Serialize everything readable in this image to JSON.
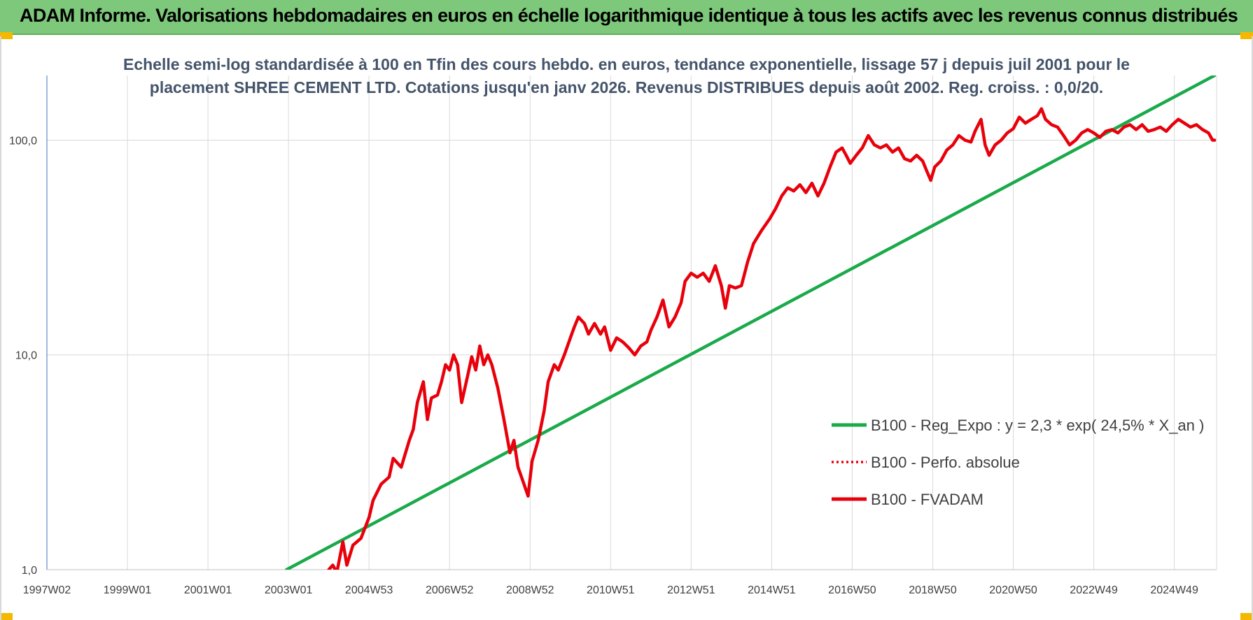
{
  "header": {
    "title": "ADAM Informe. Valorisations hebdomadaires en euros en échelle logarithmique identique à tous les actifs avec les revenus connus distribués"
  },
  "colors": {
    "banner": "#7dc87a",
    "regression": "#1aaa4a",
    "fvadam": "#e8000b",
    "perfo": "#e8000b",
    "title_text": "#44546a"
  },
  "chart_data": {
    "type": "line",
    "title_lines": [
      "Echelle semi-log standardisée à 100 en Tfin des cours hebdo. en euros, tendance exponentielle, lissage 57 j depuis juil 2001 pour le",
      "placement SHREE CEMENT LTD. Cotations jusqu'en janv 2026. Revenus DISTRIBUES depuis août 2002. Reg. croiss. : 0,0/20."
    ],
    "y_scale": "log",
    "ylim": [
      1,
      200
    ],
    "y_ticks": [
      {
        "value": 1,
        "label": "1,0"
      },
      {
        "value": 10,
        "label": "10,0"
      },
      {
        "value": 100,
        "label": "100,0"
      }
    ],
    "x_range": [
      "1997-01",
      "2026-02"
    ],
    "x_ticks": [
      {
        "date": 1997.0,
        "label": "1997W02"
      },
      {
        "date": 1999.0,
        "label": "1999W01"
      },
      {
        "date": 2001.0,
        "label": "2001W01"
      },
      {
        "date": 2003.0,
        "label": "2003W01"
      },
      {
        "date": 2005.0,
        "label": "2004W53"
      },
      {
        "date": 2007.0,
        "label": "2006W52"
      },
      {
        "date": 2009.0,
        "label": "2008W52"
      },
      {
        "date": 2011.0,
        "label": "2010W51"
      },
      {
        "date": 2013.0,
        "label": "2012W51"
      },
      {
        "date": 2015.0,
        "label": "2014W51"
      },
      {
        "date": 2017.0,
        "label": "2016W50"
      },
      {
        "date": 2019.0,
        "label": "2018W50"
      },
      {
        "date": 2021.0,
        "label": "2020W50"
      },
      {
        "date": 2023.0,
        "label": "2022W49"
      },
      {
        "date": 2025.0,
        "label": "2024W49"
      }
    ],
    "grid": "vertical and horizontal",
    "legend_position": "bottom-right",
    "series": [
      {
        "name": "B100 - Reg_Expo : y = 2,3 * exp( 24,5% *  X_an )",
        "style": "solid",
        "color": "#1aaa4a",
        "points": [
          [
            2002.95,
            1.0
          ],
          [
            2026.0,
            200.0
          ]
        ]
      },
      {
        "name": "B100 - Perfo. absolue",
        "style": "dotted",
        "color": "#e8000b",
        "points": []
      },
      {
        "name": "B100 - FVADAM",
        "style": "solid",
        "color": "#e8000b",
        "points": [
          [
            2004.0,
            1.0
          ],
          [
            2004.1,
            1.05
          ],
          [
            2004.2,
            0.97
          ],
          [
            2004.35,
            1.35
          ],
          [
            2004.45,
            1.05
          ],
          [
            2004.6,
            1.3
          ],
          [
            2004.8,
            1.4
          ],
          [
            2005.0,
            1.75
          ],
          [
            2005.1,
            2.1
          ],
          [
            2005.3,
            2.5
          ],
          [
            2005.5,
            2.7
          ],
          [
            2005.6,
            3.3
          ],
          [
            2005.8,
            3.0
          ],
          [
            2006.0,
            4.0
          ],
          [
            2006.1,
            4.5
          ],
          [
            2006.2,
            6.0
          ],
          [
            2006.35,
            7.5
          ],
          [
            2006.45,
            5.0
          ],
          [
            2006.55,
            6.3
          ],
          [
            2006.7,
            6.5
          ],
          [
            2006.8,
            7.5
          ],
          [
            2006.9,
            9.0
          ],
          [
            2007.0,
            8.5
          ],
          [
            2007.1,
            10.0
          ],
          [
            2007.2,
            9.0
          ],
          [
            2007.3,
            6.0
          ],
          [
            2007.45,
            8.0
          ],
          [
            2007.55,
            9.8
          ],
          [
            2007.65,
            8.5
          ],
          [
            2007.75,
            11.0
          ],
          [
            2007.85,
            9.0
          ],
          [
            2007.95,
            10.0
          ],
          [
            2008.05,
            9.0
          ],
          [
            2008.2,
            7.0
          ],
          [
            2008.35,
            5.0
          ],
          [
            2008.5,
            3.5
          ],
          [
            2008.6,
            4.0
          ],
          [
            2008.7,
            3.0
          ],
          [
            2008.85,
            2.5
          ],
          [
            2008.95,
            2.2
          ],
          [
            2009.05,
            3.2
          ],
          [
            2009.2,
            4.0
          ],
          [
            2009.35,
            5.5
          ],
          [
            2009.45,
            7.5
          ],
          [
            2009.6,
            9.0
          ],
          [
            2009.7,
            8.5
          ],
          [
            2009.85,
            10.0
          ],
          [
            2010.0,
            12.0
          ],
          [
            2010.1,
            13.5
          ],
          [
            2010.2,
            15.0
          ],
          [
            2010.35,
            14.0
          ],
          [
            2010.45,
            12.5
          ],
          [
            2010.6,
            14.0
          ],
          [
            2010.75,
            12.5
          ],
          [
            2010.85,
            13.5
          ],
          [
            2011.0,
            10.5
          ],
          [
            2011.15,
            12.0
          ],
          [
            2011.3,
            11.5
          ],
          [
            2011.45,
            10.8
          ],
          [
            2011.6,
            10.0
          ],
          [
            2011.75,
            11.0
          ],
          [
            2011.9,
            11.5
          ],
          [
            2012.0,
            13.0
          ],
          [
            2012.15,
            15.0
          ],
          [
            2012.3,
            18.0
          ],
          [
            2012.45,
            13.5
          ],
          [
            2012.6,
            15.0
          ],
          [
            2012.75,
            17.5
          ],
          [
            2012.85,
            22.0
          ],
          [
            2013.0,
            24.0
          ],
          [
            2013.15,
            23.0
          ],
          [
            2013.3,
            24.0
          ],
          [
            2013.45,
            22.0
          ],
          [
            2013.6,
            26.0
          ],
          [
            2013.75,
            21.0
          ],
          [
            2013.85,
            16.5
          ],
          [
            2013.95,
            21.0
          ],
          [
            2014.1,
            20.5
          ],
          [
            2014.25,
            21.0
          ],
          [
            2014.4,
            27.0
          ],
          [
            2014.55,
            33.0
          ],
          [
            2014.75,
            38.0
          ],
          [
            2014.95,
            43.0
          ],
          [
            2015.1,
            48.0
          ],
          [
            2015.25,
            55.0
          ],
          [
            2015.4,
            60.0
          ],
          [
            2015.55,
            58.0
          ],
          [
            2015.7,
            62.0
          ],
          [
            2015.85,
            57.0
          ],
          [
            2016.0,
            63.0
          ],
          [
            2016.15,
            55.0
          ],
          [
            2016.3,
            63.0
          ],
          [
            2016.45,
            75.0
          ],
          [
            2016.6,
            88.0
          ],
          [
            2016.75,
            92.0
          ],
          [
            2016.85,
            85.0
          ],
          [
            2016.95,
            78.0
          ],
          [
            2017.1,
            85.0
          ],
          [
            2017.25,
            92.0
          ],
          [
            2017.4,
            105.0
          ],
          [
            2017.55,
            95.0
          ],
          [
            2017.7,
            92.0
          ],
          [
            2017.85,
            95.0
          ],
          [
            2018.0,
            88.0
          ],
          [
            2018.15,
            92.0
          ],
          [
            2018.3,
            82.0
          ],
          [
            2018.45,
            80.0
          ],
          [
            2018.6,
            85.0
          ],
          [
            2018.75,
            80.0
          ],
          [
            2018.85,
            72.0
          ],
          [
            2018.95,
            65.0
          ],
          [
            2019.05,
            75.0
          ],
          [
            2019.2,
            80.0
          ],
          [
            2019.35,
            90.0
          ],
          [
            2019.5,
            95.0
          ],
          [
            2019.65,
            105.0
          ],
          [
            2019.8,
            100.0
          ],
          [
            2019.95,
            98.0
          ],
          [
            2020.05,
            110.0
          ],
          [
            2020.2,
            125.0
          ],
          [
            2020.3,
            95.0
          ],
          [
            2020.4,
            85.0
          ],
          [
            2020.55,
            95.0
          ],
          [
            2020.7,
            100.0
          ],
          [
            2020.85,
            108.0
          ],
          [
            2021.0,
            113.0
          ],
          [
            2021.15,
            128.0
          ],
          [
            2021.3,
            120.0
          ],
          [
            2021.45,
            125.0
          ],
          [
            2021.6,
            130.0
          ],
          [
            2021.7,
            140.0
          ],
          [
            2021.8,
            125.0
          ],
          [
            2021.95,
            118.0
          ],
          [
            2022.1,
            115.0
          ],
          [
            2022.25,
            105.0
          ],
          [
            2022.4,
            95.0
          ],
          [
            2022.55,
            100.0
          ],
          [
            2022.7,
            108.0
          ],
          [
            2022.85,
            112.0
          ],
          [
            2023.0,
            108.0
          ],
          [
            2023.15,
            103.0
          ],
          [
            2023.3,
            110.0
          ],
          [
            2023.45,
            112.0
          ],
          [
            2023.6,
            108.0
          ],
          [
            2023.75,
            115.0
          ],
          [
            2023.9,
            118.0
          ],
          [
            2024.05,
            112.0
          ],
          [
            2024.2,
            118.0
          ],
          [
            2024.35,
            110.0
          ],
          [
            2024.5,
            112.0
          ],
          [
            2024.65,
            115.0
          ],
          [
            2024.8,
            110.0
          ],
          [
            2024.95,
            118.0
          ],
          [
            2025.1,
            125.0
          ],
          [
            2025.25,
            120.0
          ],
          [
            2025.4,
            115.0
          ],
          [
            2025.55,
            118.0
          ],
          [
            2025.7,
            112.0
          ],
          [
            2025.85,
            108.0
          ],
          [
            2025.95,
            100.0
          ],
          [
            2026.0,
            100.0
          ]
        ]
      }
    ]
  }
}
